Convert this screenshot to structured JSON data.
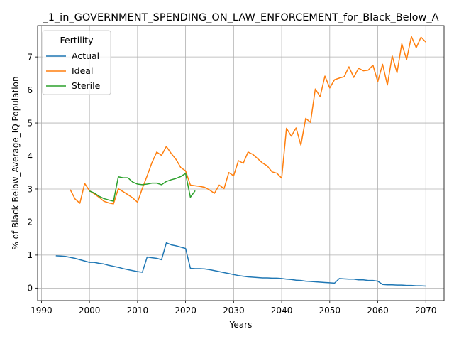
{
  "chart_data": {
    "type": "line",
    "title": "_1_in_GOVERNMENT_SPENDING_ON_LAW_ENFORCEMENT_for_Black_Below_A",
    "xlabel": "Years",
    "ylabel": "% of Black Below_Average_IQ Population",
    "xlim": [
      1989.2,
      2073.8
    ],
    "ylim": [
      -0.38,
      7.95
    ],
    "xticks": [
      1990,
      2000,
      2010,
      2020,
      2030,
      2040,
      2050,
      2060,
      2070
    ],
    "yticks": [
      0,
      1,
      2,
      3,
      4,
      5,
      6,
      7
    ],
    "grid": true,
    "legend": {
      "title": "Fertility",
      "position": "top-left"
    },
    "series": [
      {
        "name": "Actual",
        "color": "#1f77b4",
        "x": [
          1993,
          1994,
          1995,
          1996,
          1997,
          1998,
          1999,
          2000,
          2001,
          2002,
          2003,
          2004,
          2005,
          2006,
          2007,
          2008,
          2009,
          2010,
          2011,
          2012,
          2013,
          2014,
          2015,
          2016,
          2017,
          2018,
          2019,
          2020,
          2021,
          2022,
          2023,
          2024,
          2025,
          2026,
          2027,
          2028,
          2029,
          2030,
          2031,
          2032,
          2033,
          2034,
          2035,
          2036,
          2037,
          2038,
          2039,
          2040,
          2041,
          2042,
          2043,
          2044,
          2045,
          2046,
          2047,
          2048,
          2049,
          2050,
          2051,
          2052,
          2053,
          2054,
          2055,
          2056,
          2057,
          2058,
          2059,
          2060,
          2061,
          2062,
          2063,
          2064,
          2065,
          2066,
          2067,
          2068,
          2069,
          2070
        ],
        "y": [
          0.98,
          0.97,
          0.96,
          0.93,
          0.9,
          0.86,
          0.82,
          0.78,
          0.78,
          0.75,
          0.73,
          0.69,
          0.66,
          0.63,
          0.59,
          0.56,
          0.53,
          0.5,
          0.48,
          0.94,
          0.92,
          0.9,
          0.86,
          1.37,
          1.31,
          1.28,
          1.24,
          1.2,
          0.6,
          0.59,
          0.59,
          0.58,
          0.56,
          0.53,
          0.5,
          0.47,
          0.44,
          0.41,
          0.38,
          0.36,
          0.34,
          0.33,
          0.32,
          0.31,
          0.31,
          0.3,
          0.3,
          0.29,
          0.27,
          0.26,
          0.24,
          0.23,
          0.21,
          0.2,
          0.19,
          0.18,
          0.17,
          0.16,
          0.15,
          0.29,
          0.28,
          0.27,
          0.27,
          0.25,
          0.25,
          0.23,
          0.23,
          0.21,
          0.11,
          0.1,
          0.1,
          0.09,
          0.09,
          0.08,
          0.08,
          0.07,
          0.07,
          0.06
        ]
      },
      {
        "name": "Ideal",
        "color": "#ff7f0e",
        "x": [
          1996,
          1997,
          1998,
          1999,
          2000,
          2001,
          2002,
          2003,
          2004,
          2005,
          2006,
          2007,
          2008,
          2009,
          2010,
          2011,
          2012,
          2013,
          2014,
          2015,
          2016,
          2017,
          2018,
          2019,
          2020,
          2021,
          2022,
          2023,
          2024,
          2025,
          2026,
          2027,
          2028,
          2029,
          2030,
          2031,
          2032,
          2033,
          2034,
          2035,
          2036,
          2037,
          2038,
          2039,
          2040,
          2041,
          2042,
          2043,
          2044,
          2045,
          2046,
          2047,
          2048,
          2049,
          2050,
          2051,
          2052,
          2053,
          2054,
          2055,
          2056,
          2057,
          2058,
          2059,
          2060,
          2061,
          2062,
          2063,
          2064,
          2065,
          2066,
          2067,
          2068,
          2069,
          2070
        ],
        "y": [
          2.98,
          2.7,
          2.57,
          3.17,
          2.95,
          2.85,
          2.75,
          2.63,
          2.58,
          2.55,
          3.01,
          2.92,
          2.83,
          2.73,
          2.6,
          3.02,
          3.4,
          3.8,
          4.12,
          4.02,
          4.29,
          4.08,
          3.9,
          3.65,
          3.55,
          3.12,
          3.1,
          3.08,
          3.05,
          2.97,
          2.87,
          3.12,
          3.01,
          3.5,
          3.4,
          3.86,
          3.78,
          4.12,
          4.05,
          3.92,
          3.79,
          3.7,
          3.52,
          3.48,
          3.33,
          4.84,
          4.6,
          4.85,
          4.33,
          5.14,
          5.02,
          6.03,
          5.8,
          6.42,
          6.06,
          6.31,
          6.36,
          6.4,
          6.7,
          6.38,
          6.66,
          6.58,
          6.6,
          6.75,
          6.25,
          6.78,
          6.15,
          7.03,
          6.52,
          7.4,
          6.92,
          7.62,
          7.28,
          7.6,
          7.45
        ]
      },
      {
        "name": "Sterile",
        "color": "#2ca02c",
        "x": [
          2000,
          2001,
          2002,
          2003,
          2004,
          2005,
          2006,
          2007,
          2008,
          2009,
          2010,
          2011,
          2012,
          2013,
          2014,
          2015,
          2016,
          2017,
          2018,
          2019,
          2020,
          2021,
          2022
        ],
        "y": [
          2.94,
          2.88,
          2.78,
          2.71,
          2.67,
          2.63,
          3.37,
          3.34,
          3.34,
          3.21,
          3.15,
          3.13,
          3.15,
          3.18,
          3.18,
          3.13,
          3.23,
          3.28,
          3.32,
          3.38,
          3.47,
          2.75,
          2.95
        ]
      }
    ]
  }
}
